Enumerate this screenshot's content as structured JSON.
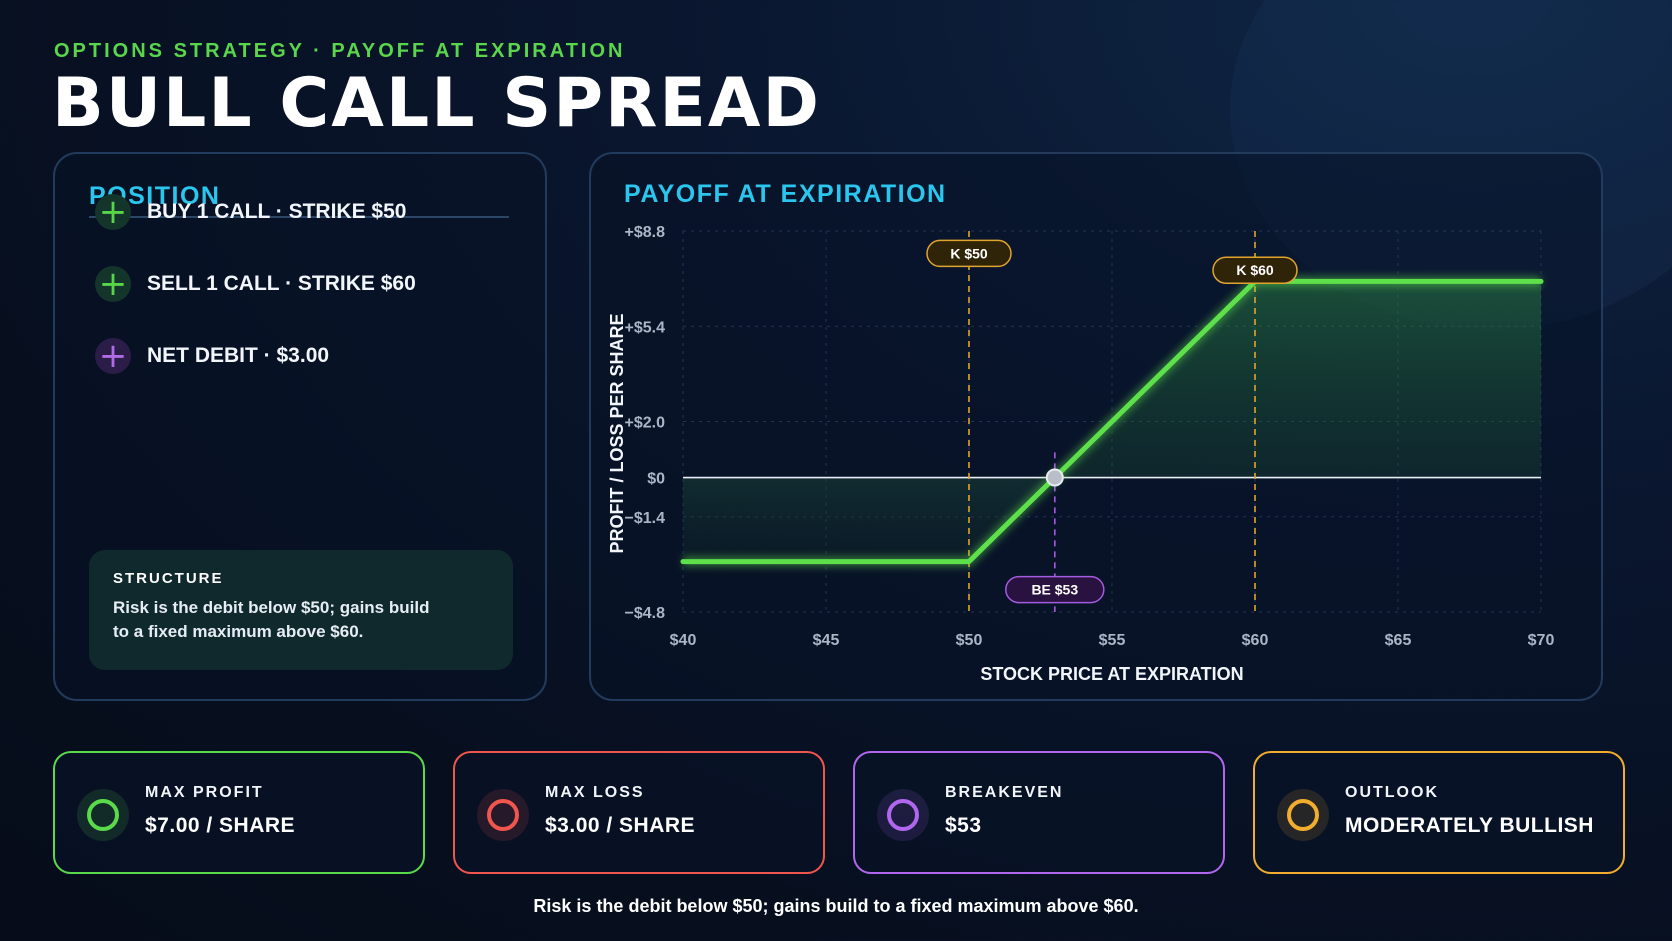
{
  "header": {
    "eyebrow": "OPTIONS STRATEGY · PAYOFF AT EXPIRATION",
    "title": "BULL CALL SPREAD"
  },
  "position": {
    "title": "POSITION",
    "items": [
      {
        "label": "BUY 1 CALL · STRIKE $50",
        "icon": "plus-icon",
        "color": "#58d64a"
      },
      {
        "label": "SELL 1 CALL · STRIKE $60",
        "icon": "plus-icon",
        "color": "#58d64a"
      },
      {
        "label": "NET DEBIT · $3.00",
        "icon": "plus-icon",
        "color": "#b06ce6"
      }
    ],
    "structure": {
      "heading": "STRUCTURE",
      "text": "Risk is the debit below $50; gains build to a fixed maximum above $60."
    }
  },
  "chart_panel": {
    "title": "PAYOFF AT EXPIRATION"
  },
  "chart_data": {
    "type": "line",
    "title": "PAYOFF AT EXPIRATION",
    "xlabel": "STOCK PRICE AT EXPIRATION",
    "ylabel": "PROFIT / LOSS PER SHARE",
    "xlim": [
      40,
      70
    ],
    "ylim": [
      -4.8,
      8.8
    ],
    "x_ticks": [
      40,
      45,
      50,
      55,
      60,
      65,
      70
    ],
    "x_tick_labels": [
      "$40",
      "$45",
      "$50",
      "$55",
      "$60",
      "$65",
      "$70"
    ],
    "y_ticks": [
      8.8,
      5.4,
      2.0,
      0,
      -1.4,
      -4.8
    ],
    "y_tick_labels": [
      "+$8.8",
      "+$5.4",
      "+$2.0",
      "$0",
      "−$1.4",
      "−$4.8"
    ],
    "grid": true,
    "series": [
      {
        "x": [
          40,
          50,
          53,
          60,
          70
        ],
        "y": [
          -3,
          -3,
          0,
          7,
          7
        ],
        "color": "#5ee04b"
      }
    ],
    "annotations": [
      {
        "type": "vline",
        "x": 50,
        "label": "K $50",
        "label_y": 8.0,
        "color": "#e0a52c"
      },
      {
        "type": "vline",
        "x": 60,
        "label": "K $60",
        "label_y": 7.4,
        "color": "#e0a52c"
      },
      {
        "type": "vline",
        "x": 53,
        "label": "BE $53",
        "label_y": -4.0,
        "color": "#a35ce0",
        "y_range": [
          -4.8,
          0.9
        ]
      },
      {
        "type": "point",
        "x": 53,
        "y": 0
      }
    ]
  },
  "cards": [
    {
      "label": "MAX PROFIT",
      "value": "$7.00 / SHARE",
      "color": "#5ad94b",
      "icon": "circle-icon"
    },
    {
      "label": "MAX LOSS",
      "value": "$3.00 / SHARE",
      "color": "#f0554e",
      "icon": "circle-icon"
    },
    {
      "label": "BREAKEVEN",
      "value": "$53",
      "color": "#b067ee",
      "icon": "circle-icon"
    },
    {
      "label": "OUTLOOK",
      "value": "MODERATELY BULLISH",
      "color": "#f2ad2e",
      "icon": "circle-icon"
    }
  ],
  "footer": "Risk is the debit below $50; gains build to a fixed maximum above $60."
}
